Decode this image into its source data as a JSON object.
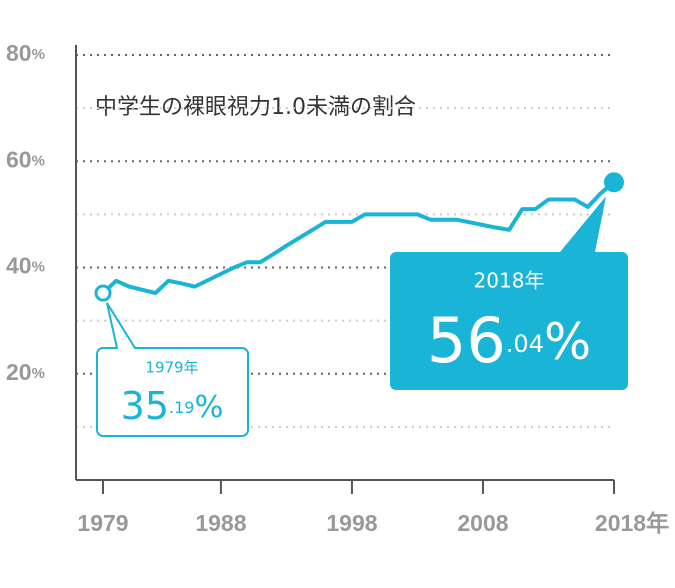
{
  "chart_data": {
    "type": "line",
    "title": "中学生の裸眼視力1.0未満の割合",
    "x": [
      1979,
      1980,
      1981,
      1982,
      1983,
      1984,
      1985,
      1986,
      1987,
      1988,
      1989,
      1990,
      1991,
      1992,
      1993,
      1994,
      1995,
      1996,
      1997,
      1998,
      1999,
      2000,
      2001,
      2002,
      2003,
      2004,
      2005,
      2006,
      2007,
      2008,
      2009,
      2010,
      2011,
      2012,
      2013,
      2014,
      2015,
      2016,
      2017,
      2018
    ],
    "series": [
      {
        "color": "#1ab4d6",
        "values": [
          35.19,
          37.5,
          36.4,
          35.8,
          35.2,
          37.5,
          37.0,
          36.4,
          37.6,
          38.8,
          40.0,
          41.0,
          41.0,
          42.5,
          44.1,
          45.6,
          47.1,
          48.6,
          48.6,
          48.6,
          50.0,
          50.0,
          50.0,
          50.0,
          50.0,
          49.0,
          49.0,
          49.0,
          48.5,
          48.0,
          47.5,
          47.1,
          51.0,
          51.0,
          52.8,
          52.8,
          52.8,
          51.4,
          54.0,
          56.04
        ],
        "value_labels": [
          "35.19%",
          null,
          null,
          null,
          null,
          null,
          null,
          null,
          null,
          null,
          null,
          null,
          null,
          null,
          null,
          null,
          null,
          null,
          null,
          null,
          null,
          null,
          null,
          null,
          null,
          null,
          null,
          null,
          null,
          null,
          null,
          null,
          null,
          null,
          null,
          null,
          null,
          null,
          null,
          "56.04%"
        ]
      }
    ],
    "annotations": [
      {
        "label": "1979年"
      },
      {
        "label": "2018年"
      }
    ],
    "xlim": [
      1979,
      2018
    ],
    "xticks": [
      1979,
      1988,
      1998,
      2008,
      {
        "value": 2018,
        "label": "2018年"
      }
    ],
    "ylim": [
      0,
      80
    ],
    "yticks": [
      {
        "value": 20,
        "label": "20%"
      },
      {
        "value": 40,
        "label": "40%"
      },
      {
        "value": 60,
        "label": "60%"
      },
      {
        "value": 80,
        "label": "80%"
      }
    ],
    "minor_yticks": [
      10,
      30,
      50,
      70
    ],
    "grid": true
  }
}
